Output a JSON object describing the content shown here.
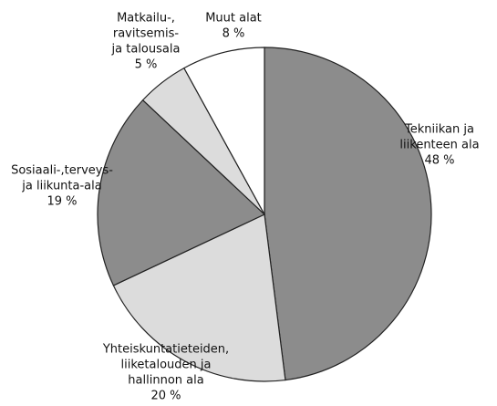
{
  "chart_data": {
    "type": "pie",
    "categories": [
      [
        "Tekniikan ja",
        "liikenteen ala"
      ],
      [
        "Yhteiskuntatieteiden,",
        "liiketalouden ja",
        "hallinnon ala"
      ],
      [
        "Sosiaali-,terveys-",
        "ja liikunta-ala"
      ],
      [
        "Matkailu-,",
        "ravitsemis-",
        "ja talousala"
      ],
      [
        "Muut alat"
      ]
    ],
    "values": [
      48,
      20,
      19,
      5,
      8
    ],
    "value_labels": [
      "48 %",
      "20 %",
      "19 %",
      "5 %",
      "8 %"
    ],
    "colors": [
      "#8c8c8c",
      "#dcdcdc",
      "#8c8c8c",
      "#dcdcdc",
      "#ffffff"
    ]
  }
}
